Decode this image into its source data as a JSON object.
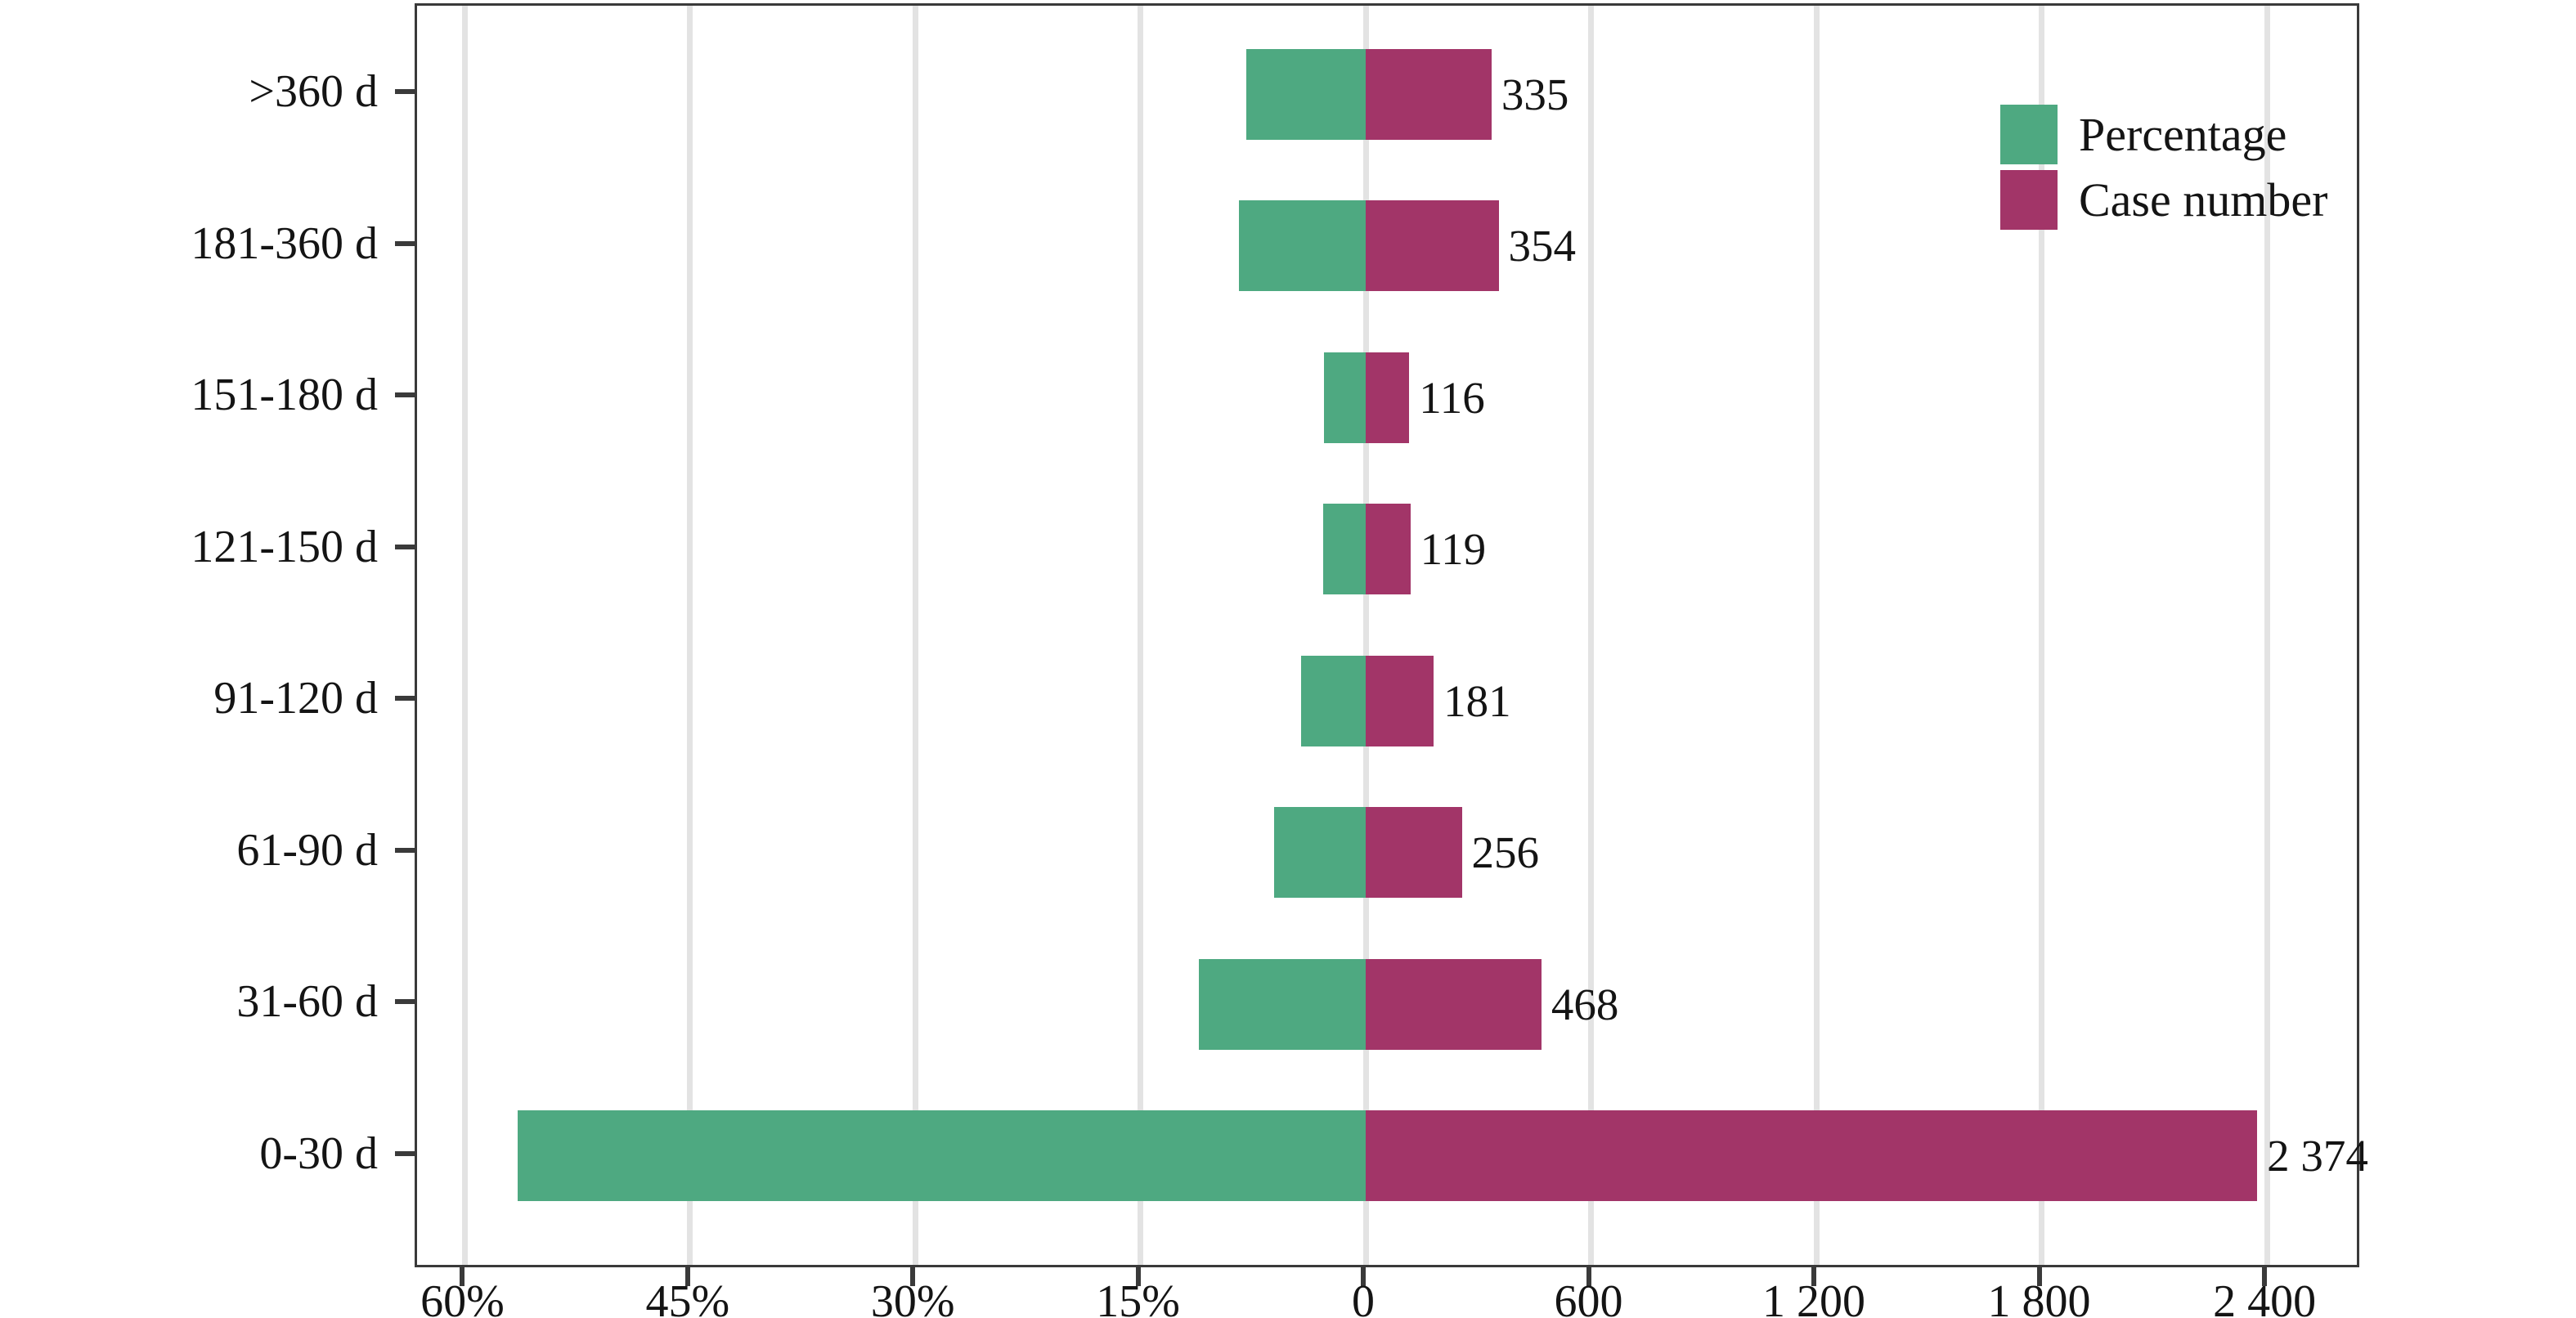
{
  "chart_data": {
    "type": "bar",
    "variant": "horizontal-diverging",
    "title": "",
    "xlabel": "",
    "ylabel": "",
    "grid": true,
    "legend_position": "top-right",
    "categories": [
      ">360 d",
      "181-360 d",
      "151-180 d",
      "121-150 d",
      "91-120 d",
      "61-90 d",
      "31-60 d",
      "0-30 d"
    ],
    "series": [
      {
        "name": "Percentage",
        "side": "left",
        "unit": "%",
        "color": "#4ea981",
        "values": [
          7.97,
          8.42,
          2.76,
          2.83,
          4.31,
          6.09,
          11.13,
          56.48
        ]
      },
      {
        "name": "Case number",
        "side": "right",
        "unit": "cases",
        "color": "#a23568",
        "values": [
          335,
          354,
          116,
          119,
          181,
          256,
          468,
          2374
        ]
      }
    ],
    "bar_value_labels": [
      "335",
      "354",
      "116",
      "119",
      "181",
      "256",
      "468",
      "2 374"
    ],
    "x_axis": {
      "left_ticks": [
        {
          "value": 60,
          "label": "60%"
        },
        {
          "value": 45,
          "label": "45%"
        },
        {
          "value": 30,
          "label": "30%"
        },
        {
          "value": 15,
          "label": "15%"
        }
      ],
      "zero_tick": {
        "value": 0,
        "label": "0"
      },
      "right_ticks": [
        {
          "value": 600,
          "label": "600"
        },
        {
          "value": 1200,
          "label": "1 200"
        },
        {
          "value": 1800,
          "label": "1 800"
        },
        {
          "value": 2400,
          "label": "2 400"
        }
      ],
      "left_axis_max_percent": 63.2,
      "right_axis_max_cases": 2652
    },
    "legend": [
      {
        "label": "Percentage",
        "color": "#4ea981"
      },
      {
        "label": "Case number",
        "color": "#a23568"
      }
    ]
  },
  "colors": {
    "percentage_green": "#4ea981",
    "case_magenta": "#a23568",
    "gridline": "#e3e3e3",
    "axis": "#3a3a3a",
    "text": "#141414",
    "background": "#ffffff"
  }
}
